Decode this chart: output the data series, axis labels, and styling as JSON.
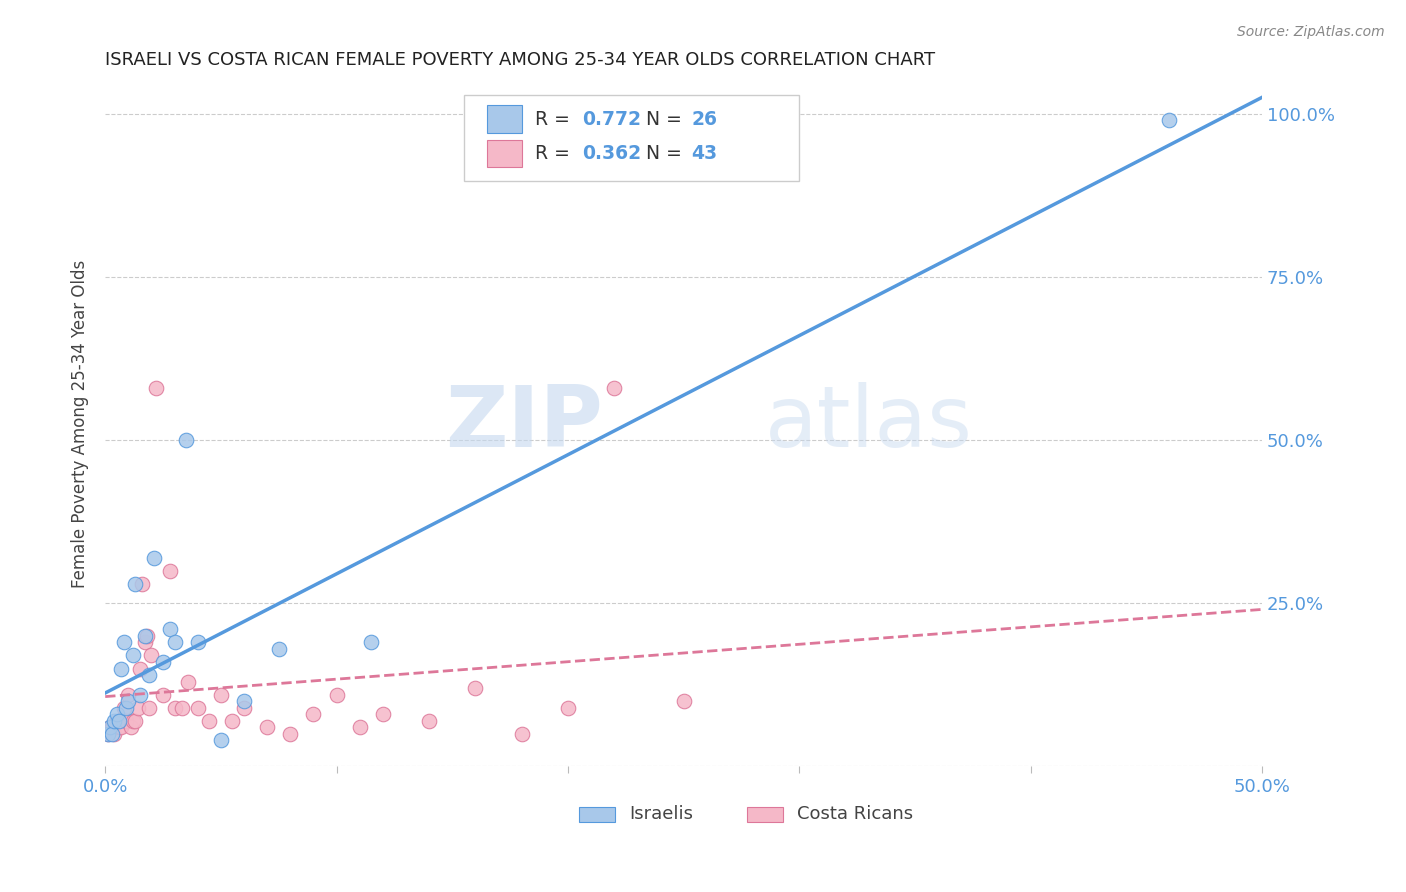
{
  "title": "ISRAELI VS COSTA RICAN FEMALE POVERTY AMONG 25-34 YEAR OLDS CORRELATION CHART",
  "source": "Source: ZipAtlas.com",
  "ylabel": "Female Poverty Among 25-34 Year Olds",
  "xlim": [
    0.0,
    0.5
  ],
  "ylim": [
    0.0,
    1.05
  ],
  "xticks": [
    0.0,
    0.1,
    0.2,
    0.3,
    0.4,
    0.5
  ],
  "xtick_labels": [
    "0.0%",
    "",
    "",
    "",
    "",
    "50.0%"
  ],
  "yticks": [
    0.0,
    0.25,
    0.5,
    0.75,
    1.0
  ],
  "right_ytick_labels": [
    "",
    "25.0%",
    "50.0%",
    "75.0%",
    "100.0%"
  ],
  "watermark_zip": "ZIP",
  "watermark_atlas": "atlas",
  "israeli_color": "#a8c8ea",
  "costa_rican_color": "#f5b8c8",
  "israeli_line_color": "#5599dd",
  "costa_rican_line_color": "#dd7799",
  "r_israeli": 0.772,
  "n_israeli": 26,
  "r_costa": 0.362,
  "n_costa": 43,
  "legend_label_israeli": "Israelis",
  "legend_label_costa": "Costa Ricans",
  "israelis_x": [
    0.001,
    0.002,
    0.003,
    0.004,
    0.005,
    0.006,
    0.007,
    0.008,
    0.009,
    0.01,
    0.012,
    0.013,
    0.015,
    0.017,
    0.019,
    0.021,
    0.025,
    0.028,
    0.03,
    0.035,
    0.04,
    0.05,
    0.06,
    0.075,
    0.115,
    0.46
  ],
  "israelis_y": [
    0.05,
    0.06,
    0.05,
    0.07,
    0.08,
    0.07,
    0.15,
    0.19,
    0.09,
    0.1,
    0.17,
    0.28,
    0.11,
    0.2,
    0.14,
    0.32,
    0.16,
    0.21,
    0.19,
    0.5,
    0.19,
    0.04,
    0.1,
    0.18,
    0.19,
    0.99
  ],
  "costa_x": [
    0.001,
    0.002,
    0.003,
    0.004,
    0.005,
    0.006,
    0.007,
    0.008,
    0.009,
    0.01,
    0.011,
    0.012,
    0.013,
    0.014,
    0.015,
    0.016,
    0.017,
    0.018,
    0.019,
    0.02,
    0.022,
    0.025,
    0.028,
    0.03,
    0.033,
    0.036,
    0.04,
    0.045,
    0.05,
    0.055,
    0.06,
    0.07,
    0.08,
    0.09,
    0.1,
    0.11,
    0.12,
    0.14,
    0.16,
    0.18,
    0.2,
    0.22,
    0.25
  ],
  "costa_y": [
    0.05,
    0.06,
    0.06,
    0.05,
    0.07,
    0.06,
    0.06,
    0.09,
    0.07,
    0.11,
    0.06,
    0.07,
    0.07,
    0.09,
    0.15,
    0.28,
    0.19,
    0.2,
    0.09,
    0.17,
    0.58,
    0.11,
    0.3,
    0.09,
    0.09,
    0.13,
    0.09,
    0.07,
    0.11,
    0.07,
    0.09,
    0.06,
    0.05,
    0.08,
    0.11,
    0.06,
    0.08,
    0.07,
    0.12,
    0.05,
    0.09,
    0.58,
    0.1
  ],
  "background_color": "#ffffff",
  "grid_color": "#cccccc",
  "title_color": "#222222",
  "axis_label_color": "#444444",
  "tick_color": "#5599dd",
  "marker_size": 110,
  "blue_text_color": "#5599dd"
}
